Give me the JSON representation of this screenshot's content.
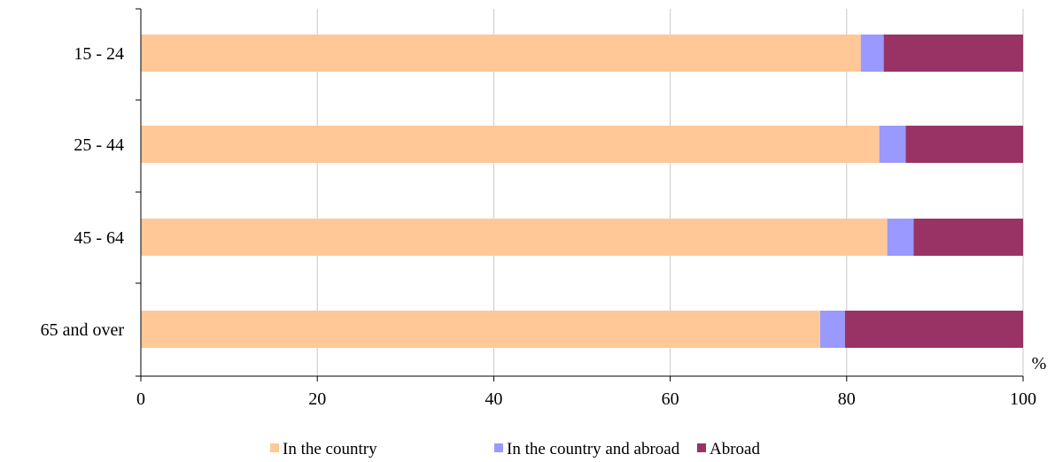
{
  "chart_data": {
    "type": "bar",
    "orientation": "horizontal",
    "stacked": true,
    "categories": [
      "15 - 24",
      "25 - 44",
      "45 - 64",
      "65 and over"
    ],
    "series": [
      {
        "name": "In the country",
        "values": [
          81.6,
          83.7,
          84.6,
          77.0
        ]
      },
      {
        "name": "In the country and abroad",
        "values": [
          2.6,
          3.0,
          3.0,
          2.8
        ]
      },
      {
        "name": "Abroad",
        "values": [
          15.8,
          13.3,
          12.4,
          20.2
        ]
      }
    ],
    "xlim": [
      0,
      100
    ],
    "x_ticks": [
      "0",
      "20",
      "40",
      "60",
      "80",
      "100"
    ],
    "unit_label": "%",
    "grid": "vertical",
    "legend": "bottom",
    "colors": [
      "#FFC896",
      "#9999FF",
      "#993366"
    ]
  }
}
